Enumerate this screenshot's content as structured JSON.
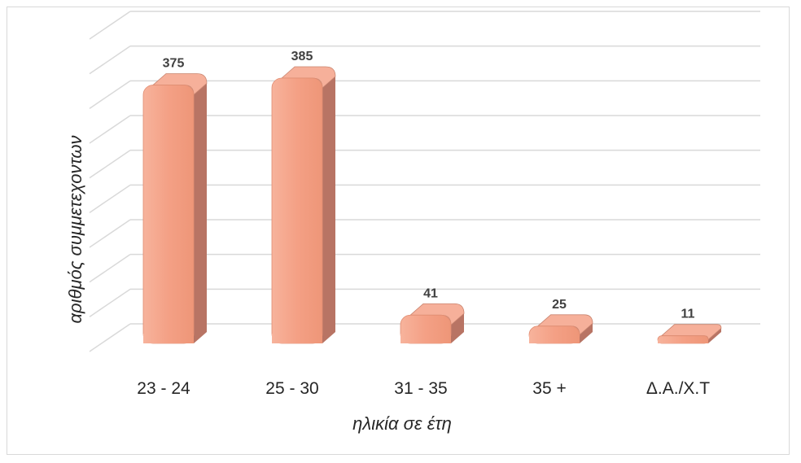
{
  "chart_data": {
    "type": "bar",
    "style": "3d-column",
    "categories": [
      "23 - 24",
      "25 - 30",
      "31 - 35",
      "35 +",
      "Δ.Α./Χ.Τ"
    ],
    "values": [
      375,
      385,
      41,
      25,
      11
    ],
    "data_labels": [
      "375",
      "385",
      "41",
      "25",
      "11"
    ],
    "title": "",
    "xlabel": "ηλικία σε έτη",
    "ylabel": "αριθμός συμμετεχοντων",
    "ylim": [
      0,
      400
    ],
    "grid": true,
    "legend": "none",
    "colors": {
      "bar_front": "#f4a085",
      "bar_side": "#b87464",
      "bar_top": "#f6b09a",
      "grid": "#d9d9d9"
    }
  }
}
